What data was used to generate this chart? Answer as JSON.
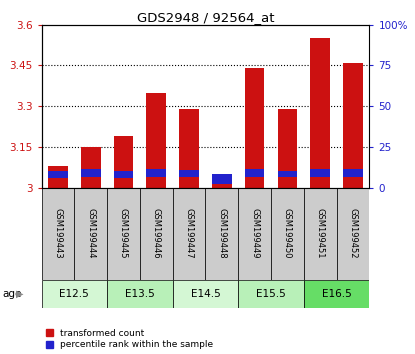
{
  "title": "GDS2948 / 92564_at",
  "samples": [
    "GSM199443",
    "GSM199444",
    "GSM199445",
    "GSM199446",
    "GSM199447",
    "GSM199448",
    "GSM199449",
    "GSM199450",
    "GSM199451",
    "GSM199452"
  ],
  "red_values": [
    3.08,
    3.15,
    3.19,
    3.35,
    3.29,
    3.02,
    3.44,
    3.29,
    3.55,
    3.46
  ],
  "blue_heights": [
    0.025,
    0.03,
    0.025,
    0.03,
    0.028,
    0.04,
    0.03,
    0.025,
    0.03,
    0.03
  ],
  "blue_bottoms": [
    3.035,
    3.04,
    3.035,
    3.04,
    3.038,
    3.012,
    3.04,
    3.038,
    3.04,
    3.04
  ],
  "ymin": 3.0,
  "ymax": 3.6,
  "yticks": [
    3.0,
    3.15,
    3.3,
    3.45,
    3.6
  ],
  "ytick_labels": [
    "3",
    "3.15",
    "3.3",
    "3.45",
    "3.6"
  ],
  "right_yticks": [
    0,
    25,
    50,
    75,
    100
  ],
  "right_ytick_labels": [
    "0",
    "25",
    "50",
    "75",
    "100%"
  ],
  "age_groups": [
    {
      "label": "E12.5",
      "start": 0,
      "end": 2,
      "color": "#d4f7d4"
    },
    {
      "label": "E13.5",
      "start": 2,
      "end": 4,
      "color": "#b8f0b8"
    },
    {
      "label": "E14.5",
      "start": 4,
      "end": 6,
      "color": "#d4f7d4"
    },
    {
      "label": "E15.5",
      "start": 6,
      "end": 8,
      "color": "#b8f0b8"
    },
    {
      "label": "E16.5",
      "start": 8,
      "end": 10,
      "color": "#66dd66"
    }
  ],
  "bar_color": "#cc1111",
  "percentile_color": "#2222cc",
  "bar_width": 0.6,
  "background_color": "#ffffff",
  "label_area_color": "#cccccc",
  "age_label": "age",
  "grid_yticks": [
    3.15,
    3.3,
    3.45
  ]
}
